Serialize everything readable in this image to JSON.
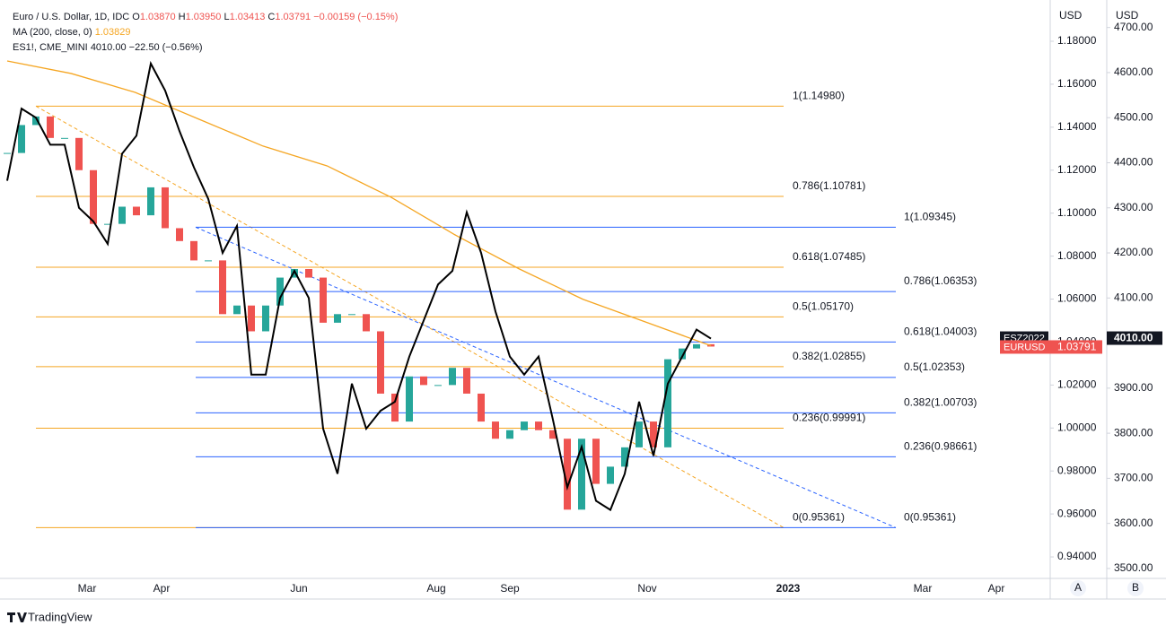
{
  "header": {
    "symbol": "Euro / U.S. Dollar, 1D, IDC",
    "o_label": "O",
    "o": "1.03870",
    "h_label": "H",
    "h": "1.03950",
    "l_label": "L",
    "l": "1.03413",
    "c_label": "C",
    "c": "1.03791",
    "change": "−0.00159 (−0.15%)",
    "ma_label": "MA (200, close, 0)",
    "ma_value": "1.03829",
    "es_label": "ES1!, CME_MINI",
    "es_value": "4010.00",
    "es_change": "−22.50 (−0.56%)"
  },
  "chart_data": {
    "type": "candlestick",
    "series": [
      {
        "up_color": "#26a69a",
        "down_color": "#ef5350",
        "values": [
          1.128,
          1.141,
          1.145,
          1.135,
          1.135,
          1.12,
          1.095,
          1.095,
          1.103,
          1.099,
          1.112,
          1.093,
          1.087,
          1.078,
          1.078,
          1.053,
          1.057,
          1.045,
          1.057,
          1.07,
          1.074,
          1.07,
          1.049,
          1.053,
          1.053,
          1.045,
          1.016,
          1.003,
          1.024,
          1.02,
          1.02,
          1.028,
          1.016,
          1.003,
          0.995,
          0.999,
          1.003,
          0.999,
          0.995,
          0.962,
          0.995,
          0.974,
          0.982,
          0.991,
          1.003,
          0.991,
          1.032,
          1.037,
          1.039,
          1.03791
        ]
      },
      {
        "color": "#f5a623",
        "values": [
          1.1708,
          1.165,
          1.1562,
          1.1437,
          1.1312,
          1.122,
          1.1074,
          1.0899,
          1.0741,
          1.0599,
          1.0491,
          1.03829
        ]
      },
      {
        "color": "#000000",
        "axis": "y2",
        "values": [
          4360,
          4520,
          4500,
          4440,
          4440,
          4300,
          4270,
          4220,
          4420,
          4460,
          4620,
          4560,
          4470,
          4390,
          4320,
          4200,
          4260,
          3930,
          3930,
          4100,
          4160,
          4100,
          3810,
          3710,
          3910,
          3810,
          3850,
          3870,
          3970,
          4050,
          4130,
          4160,
          4290,
          4200,
          4070,
          3970,
          3930,
          3970,
          3830,
          3680,
          3770,
          3650,
          3630,
          3710,
          3870,
          3750,
          3910,
          3970,
          4030,
          4010
        ]
      }
    ],
    "ylim": [
      0.93,
      1.1992
    ],
    "yticks": [
      {
        "value": 1.18,
        "label": "1.18000"
      },
      {
        "value": 1.16,
        "label": "1.16000"
      },
      {
        "value": 1.14,
        "label": "1.14000"
      },
      {
        "value": 1.12,
        "label": "1.12000"
      },
      {
        "value": 1.1,
        "label": "1.10000"
      },
      {
        "value": 1.08,
        "label": "1.08000"
      },
      {
        "value": 1.06,
        "label": "1.06000"
      },
      {
        "value": 1.04,
        "label": "1.04000"
      },
      {
        "value": 1.02,
        "label": "1.02000"
      },
      {
        "value": 1.0,
        "label": "1.00000"
      },
      {
        "value": 0.98,
        "label": "0.98000"
      },
      {
        "value": 0.96,
        "label": "0.96000"
      },
      {
        "value": 0.94,
        "label": "0.94000"
      }
    ],
    "y2lim": [
      3478,
      4761
    ],
    "y2ticks": [
      {
        "value": 4700,
        "label": "4700.00"
      },
      {
        "value": 4600,
        "label": "4600.00"
      },
      {
        "value": 4500,
        "label": "4500.00"
      },
      {
        "value": 4400,
        "label": "4400.00"
      },
      {
        "value": 4300,
        "label": "4300.00"
      },
      {
        "value": 4200,
        "label": "4200.00"
      },
      {
        "value": 4100,
        "label": "4100.00"
      },
      {
        "value": 3900,
        "label": "3900.00"
      },
      {
        "value": 3800,
        "label": "3800.00"
      },
      {
        "value": 3700,
        "label": "3700.00"
      },
      {
        "value": 3600,
        "label": "3600.00"
      },
      {
        "value": 3500,
        "label": "3500.00"
      }
    ],
    "x_labels": [
      "Mar",
      "Apr",
      "Jun",
      "Aug",
      "Sep",
      "Nov",
      "2023",
      "Mar",
      "Apr"
    ],
    "axis_unit": "USD",
    "fib_orange": {
      "color": "#f5a623",
      "levels": [
        {
          "value": 1.1498,
          "label": "1(1.14980)"
        },
        {
          "value": 1.10781,
          "label": "0.786(1.10781)"
        },
        {
          "value": 1.07485,
          "label": "0.618(1.07485)"
        },
        {
          "value": 1.0517,
          "label": "0.5(1.05170)"
        },
        {
          "value": 1.02855,
          "label": "0.382(1.02855)"
        },
        {
          "value": 0.99991,
          "label": "0.236(0.99991)"
        },
        {
          "value": 0.95361,
          "label": "0(0.95361)"
        }
      ]
    },
    "fib_blue": {
      "color": "#2962ff",
      "levels": [
        {
          "value": 1.09345,
          "label": "1(1.09345)"
        },
        {
          "value": 1.06353,
          "label": "0.786(1.06353)"
        },
        {
          "value": 1.04003,
          "label": "0.618(1.04003)"
        },
        {
          "value": 1.02353,
          "label": "0.5(1.02353)"
        },
        {
          "value": 1.00703,
          "label": "0.382(1.00703)"
        },
        {
          "value": 0.98661,
          "label": "0.236(0.98661)"
        },
        {
          "value": 0.95361,
          "label": "0(0.95361)"
        }
      ]
    },
    "tags": {
      "es_symbol": "ESZ2022",
      "eur_symbol": "EURUSD",
      "eur_price": "1.03791",
      "es_price": "4010.00"
    },
    "scale_buttons": [
      "A",
      "B"
    ],
    "logo": "TradingView"
  }
}
